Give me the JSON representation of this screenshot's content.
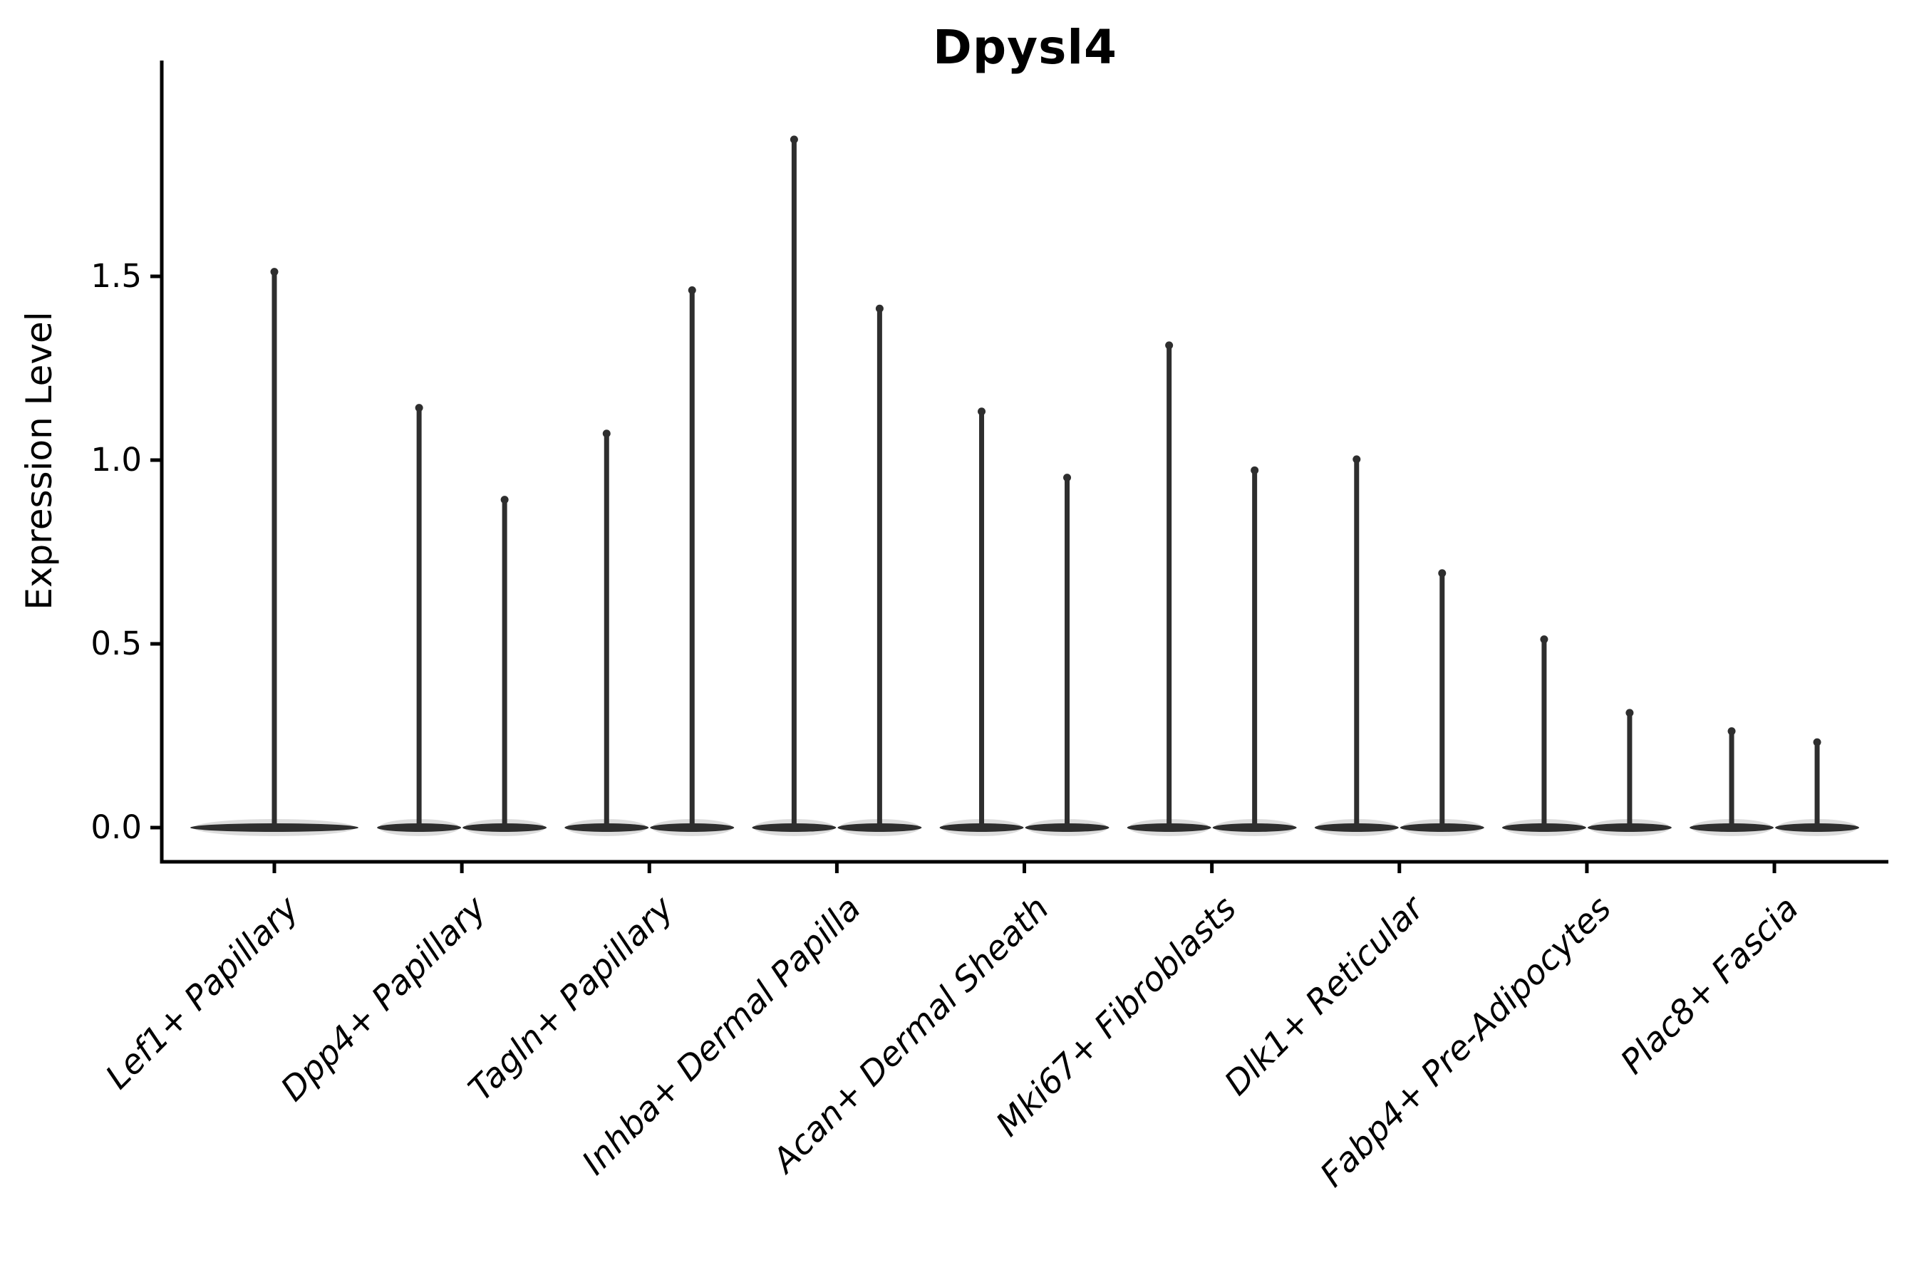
{
  "chart_data": {
    "type": "violin",
    "title": "Dpysl4",
    "ylabel": "Expression Level",
    "xlabel": "",
    "yticks": [
      0.0,
      0.5,
      1.0,
      1.5
    ],
    "ylim": [
      -0.09,
      2.09
    ],
    "grid": false,
    "legend": "none",
    "note": "Seurat/scanpy-style expression violin plot; violins are flat discs at 0 with thin tails up to the max expression value; first category has a single full-width violin, all others have two dodged violins",
    "categories": [
      {
        "label": "Lef1+ Papillary",
        "violin_max": [
          1.52
        ]
      },
      {
        "label": "Dpp4+ Papillary",
        "violin_max": [
          1.15,
          0.9
        ]
      },
      {
        "label": "Tagln+ Papillary",
        "violin_max": [
          1.08,
          1.47
        ]
      },
      {
        "label": "Inhba+ Dermal Papilla",
        "violin_max": [
          1.88,
          1.42
        ]
      },
      {
        "label": "Acan+ Dermal Sheath",
        "violin_max": [
          1.14,
          0.96
        ]
      },
      {
        "label": "Mki67+ Fibroblasts",
        "violin_max": [
          1.32,
          0.98
        ]
      },
      {
        "label": "Dlk1+ Reticular",
        "violin_max": [
          1.01,
          0.7
        ]
      },
      {
        "label": "Fabp4+ Pre-Adipocytes",
        "violin_max": [
          0.52,
          0.32
        ]
      },
      {
        "label": "Plac8+ Fascia",
        "violin_max": [
          0.27,
          0.24
        ]
      }
    ],
    "violin_min": 0.0,
    "colors": {
      "violin": "#2e2e2e",
      "axis": "#000000",
      "text": "#000000",
      "background": "#ffffff"
    }
  }
}
